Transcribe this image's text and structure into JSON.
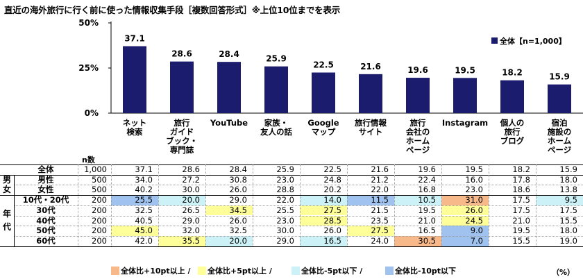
{
  "title": "直近の海外旅行に行く前に使った情報収集手段［複数回答形式］※上位10位までを表示",
  "colors": {
    "bar": "#1c1c6e",
    "plus10": "#f7b98a",
    "plus5": "#ffff99",
    "minus5": "#ccf2f7",
    "minus10": "#9fc3ee"
  },
  "chart_data": {
    "type": "bar",
    "categories": [
      "ネット\n検索",
      "旅行\nガイド\nブック・\n専門誌",
      "YouTube",
      "家族・\n友人の話",
      "Google\nマップ",
      "旅行情報\nサイト",
      "旅行\n会社の\nホーム\nページ",
      "Instagram",
      "個人の\n旅行\nブログ",
      "宿泊\n施設の\nホーム\nページ"
    ],
    "series": [
      {
        "name": "全体【n=1,000】",
        "values": [
          37.1,
          28.6,
          28.4,
          25.9,
          22.5,
          21.6,
          19.6,
          19.5,
          18.2,
          15.9
        ]
      }
    ],
    "ylim": [
      0,
      50
    ],
    "yticks": [
      "0%",
      "25%",
      "50%"
    ],
    "legend": "top-right"
  },
  "table": {
    "n_header": "n数",
    "group_gender": "男\n女",
    "group_age": "年\n代",
    "rows": [
      {
        "label": "全体",
        "n": "1,000",
        "values": [
          "37.1",
          "28.6",
          "28.4",
          "25.9",
          "22.5",
          "21.6",
          "19.6",
          "19.5",
          "18.2",
          "15.9"
        ],
        "hl": [
          "",
          "",
          "",
          "",
          "",
          "",
          "",
          "",
          "",
          ""
        ]
      },
      {
        "label": "男性",
        "n": "500",
        "values": [
          "34.0",
          "27.2",
          "30.8",
          "23.0",
          "24.8",
          "21.2",
          "22.4",
          "16.0",
          "17.8",
          "18.0"
        ],
        "hl": [
          "",
          "",
          "",
          "",
          "",
          "",
          "",
          "",
          "",
          ""
        ]
      },
      {
        "label": "女性",
        "n": "500",
        "values": [
          "40.2",
          "30.0",
          "26.0",
          "28.8",
          "20.2",
          "22.0",
          "16.8",
          "23.0",
          "18.6",
          "13.8"
        ],
        "hl": [
          "",
          "",
          "",
          "",
          "",
          "",
          "",
          "",
          "",
          ""
        ]
      },
      {
        "label": "10代・20代",
        "n": "200",
        "values": [
          "25.5",
          "20.0",
          "29.0",
          "22.0",
          "14.0",
          "11.5",
          "10.5",
          "31.0",
          "17.5",
          "9.5"
        ],
        "hl": [
          "minus10",
          "minus5",
          "",
          "",
          "minus5",
          "minus10",
          "minus5",
          "plus10",
          "",
          "minus5"
        ]
      },
      {
        "label": "30代",
        "n": "200",
        "values": [
          "32.5",
          "26.5",
          "34.5",
          "25.5",
          "27.5",
          "21.5",
          "19.5",
          "26.0",
          "17.5",
          "17.5"
        ],
        "hl": [
          "",
          "",
          "plus5",
          "",
          "plus5",
          "",
          "",
          "plus5",
          "",
          ""
        ]
      },
      {
        "label": "40代",
        "n": "200",
        "values": [
          "40.5",
          "29.0",
          "26.0",
          "23.0",
          "28.5",
          "23.5",
          "21.0",
          "24.5",
          "21.0",
          "15.5"
        ],
        "hl": [
          "",
          "",
          "",
          "",
          "plus5",
          "",
          "",
          "plus5",
          "",
          ""
        ]
      },
      {
        "label": "50代",
        "n": "200",
        "values": [
          "45.0",
          "32.0",
          "32.5",
          "30.0",
          "26.0",
          "27.5",
          "16.5",
          "9.0",
          "19.5",
          "18.0"
        ],
        "hl": [
          "plus5",
          "",
          "",
          "",
          "",
          "plus5",
          "",
          "minus10",
          "",
          ""
        ]
      },
      {
        "label": "60代",
        "n": "200",
        "values": [
          "42.0",
          "35.5",
          "20.0",
          "29.0",
          "16.5",
          "24.0",
          "30.5",
          "7.0",
          "15.5",
          "19.0"
        ],
        "hl": [
          "",
          "plus5",
          "minus5",
          "",
          "minus5",
          "",
          "plus10",
          "minus10",
          "",
          ""
        ]
      }
    ]
  },
  "key": {
    "plus10": "全体比+10pt以上",
    "plus5": "全体比+5pt以上",
    "minus5": "全体比-5pt以下",
    "minus10": "全体比-10pt以下",
    "unit": "（%）"
  }
}
